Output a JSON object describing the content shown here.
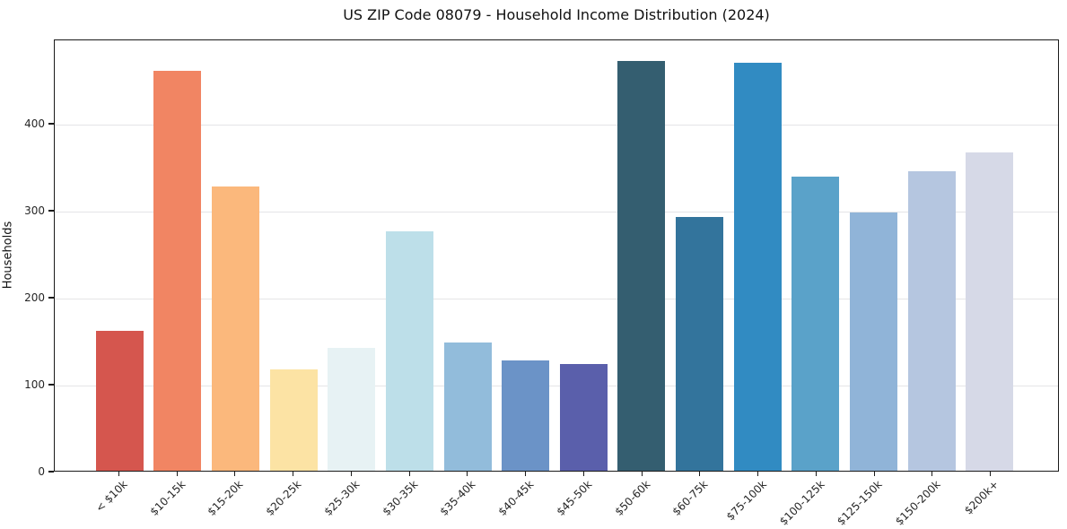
{
  "figure": {
    "background_color": "#ffffff",
    "text_color": "#262626",
    "spine_color": "#1a1a1a",
    "grid_color": "#e5e5e7"
  },
  "chart_data": {
    "type": "bar",
    "title": "US ZIP Code 08079 - Household Income Distribution (2024)",
    "xlabel": "",
    "ylabel": "Households",
    "categories": [
      "< $10k",
      "$10-15k",
      "$15-20k",
      "$20-25k",
      "$25-30k",
      "$30-35k",
      "$35-40k",
      "$40-45k",
      "$45-50k",
      "$50-60k",
      "$60-75k",
      "$75-100k",
      "$100-125k",
      "$125-150k",
      "$150-200k",
      "$200k+"
    ],
    "values": [
      162,
      462,
      328,
      117,
      142,
      276,
      148,
      127,
      123,
      473,
      293,
      471,
      340,
      298,
      346,
      368
    ],
    "bar_colors": [
      "#d5564e",
      "#f18563",
      "#fbb87c",
      "#fce3a4",
      "#e7f2f4",
      "#bddfe9",
      "#92bcdb",
      "#6b93c7",
      "#5a5fab",
      "#345e70",
      "#33749c",
      "#318bc2",
      "#5aa2c9",
      "#90b4d8",
      "#b5c6e0",
      "#d6d9e7"
    ],
    "yticks": [
      0,
      100,
      200,
      300,
      400
    ],
    "ylim": [
      0,
      497
    ],
    "grid": "horizontal",
    "legend_position": "none",
    "x_tick_rotation_deg": 45
  }
}
